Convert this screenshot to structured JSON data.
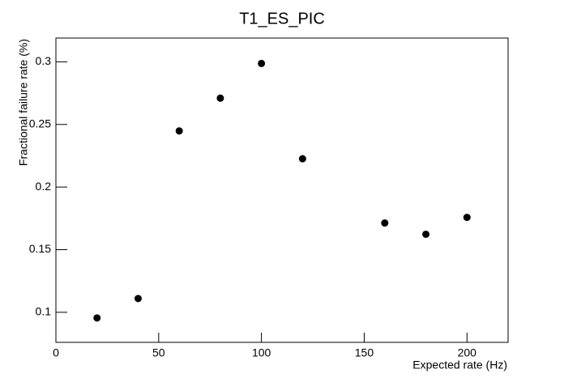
{
  "chart_data": {
    "type": "scatter",
    "title": "T1_ES_PIC",
    "x_label": "Expected rate (Hz)",
    "y_label": "Fractional failure rate (%)",
    "x": [
      20,
      40,
      60,
      80,
      100,
      120,
      160,
      180,
      200
    ],
    "values": [
      0.0955,
      0.111,
      0.2448,
      0.271,
      0.2987,
      0.2226,
      0.1713,
      0.1623,
      0.1758
    ],
    "color": "#000000",
    "xlim": [
      0,
      220
    ],
    "xticks": [
      0,
      50,
      100,
      150,
      200
    ],
    "ylim": [
      0.076,
      0.319
    ],
    "yticks": [
      0.1,
      0.15,
      0.2,
      0.25,
      0.3
    ]
  }
}
